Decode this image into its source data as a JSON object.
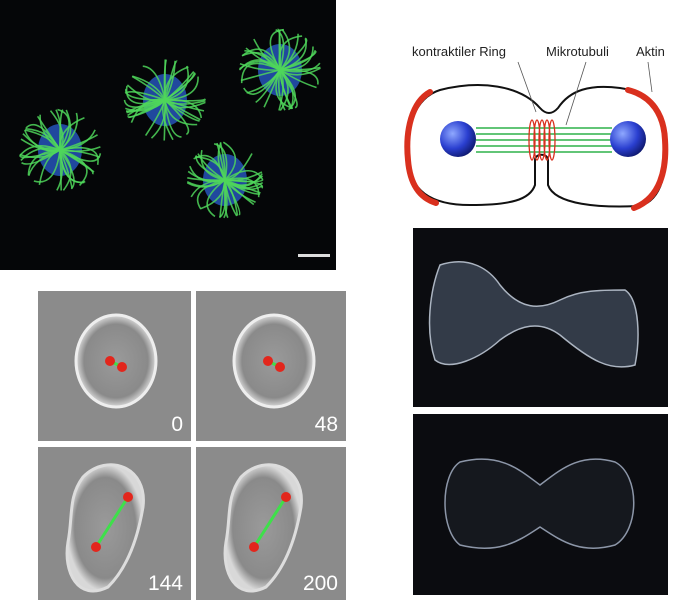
{
  "diagram": {
    "labels": [
      "kontraktiler Ring",
      "Mikrotubuli",
      "Aktin"
    ]
  },
  "timelapse": {
    "frames": [
      {
        "time": 0
      },
      {
        "time": 48
      },
      {
        "time": 144
      },
      {
        "time": 200
      }
    ]
  }
}
